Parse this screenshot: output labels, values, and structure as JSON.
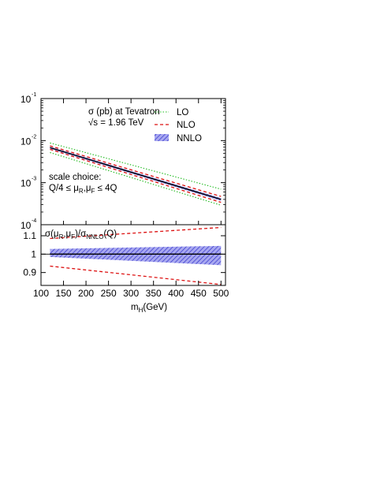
{
  "chart_data": [
    {
      "type": "line",
      "panel": "upper",
      "annotation_line1": "σ (pb) at Tevatron",
      "annotation_line2": "√s = 1.96 TeV",
      "scale_line1": "scale choice:",
      "scale_line2": "Q/4 ≤ μ_R,μ_F ≤ 4Q",
      "scale_lhs": "Q/4 ≤ μ",
      "scale_sub_R": "R",
      "scale_comma": ",μ",
      "scale_sub_F": "F",
      "scale_rhs": " ≤ 4Q",
      "yscale": "log",
      "ylim": [
        0.0001,
        0.1
      ],
      "xlim": [
        100,
        510
      ],
      "y_ticks": [
        {
          "value": 0.1,
          "base": "10",
          "exp": "-1"
        },
        {
          "value": 0.01,
          "base": "10",
          "exp": "-2"
        },
        {
          "value": 0.001,
          "base": "10",
          "exp": "-3"
        },
        {
          "value": 0.0001,
          "base": "10",
          "exp": "-4"
        }
      ],
      "legend": [
        {
          "label": "LO",
          "style": "dotted",
          "color": "#22bb22"
        },
        {
          "label": "NLO",
          "style": "dashed",
          "color": "#dd1111"
        },
        {
          "label": "NNLO",
          "style": "band",
          "color": "#3333cc"
        }
      ],
      "x": [
        120,
        500
      ],
      "series": [
        {
          "name": "LO",
          "style": "dotted",
          "color": "#22bb22",
          "values": [
            0.0088,
            0.0007
          ]
        },
        {
          "name": "LO",
          "style": "dotted",
          "color": "#22bb22",
          "values": [
            0.0052,
            0.00029
          ]
        },
        {
          "name": "NLO",
          "style": "dashed",
          "color": "#dd1111",
          "values": [
            0.0075,
            0.00047
          ]
        },
        {
          "name": "NLO",
          "style": "dashed",
          "color": "#dd1111",
          "values": [
            0.0062,
            0.00034
          ]
        },
        {
          "name": "NNLO",
          "style": "solid",
          "color": "#000000",
          "values": [
            0.0068,
            0.0004
          ]
        }
      ],
      "band": {
        "name": "NNLO",
        "color": "#3333cc",
        "upper": [
          0.0072,
          0.00043
        ],
        "lower": [
          0.0064,
          0.00037
        ]
      }
    },
    {
      "type": "line",
      "panel": "lower",
      "ylabel_text": "σ(μ_R,μ_F)/σ_NNLO(Q)",
      "ylim": [
        0.83,
        1.16
      ],
      "xlim": [
        100,
        510
      ],
      "y_ticks": [
        {
          "value": 1.1,
          "label": "1.1"
        },
        {
          "value": 1.0,
          "label": "1"
        },
        {
          "value": 0.9,
          "label": "0.9"
        }
      ],
      "x_ticks": [
        100,
        150,
        200,
        250,
        300,
        350,
        400,
        450,
        500
      ],
      "xlabel": "m_H(GeV)",
      "xlabel_main": "m",
      "xlabel_sub": "H",
      "xlabel_unit": "(GeV)",
      "x": [
        120,
        500
      ],
      "series": [
        {
          "name": "NLO",
          "style": "dashed",
          "color": "#dd1111",
          "values": [
            1.085,
            1.145
          ]
        },
        {
          "name": "NLO",
          "style": "dashed",
          "color": "#dd1111",
          "values": [
            0.935,
            0.835
          ]
        },
        {
          "name": "NNLO",
          "style": "solid",
          "color": "#000000",
          "values": [
            1.0,
            1.0
          ]
        }
      ],
      "band": {
        "name": "NNLO",
        "color": "#3333cc",
        "upper": [
          1.028,
          1.045
        ],
        "lower": [
          0.985,
          0.94
        ]
      }
    }
  ]
}
